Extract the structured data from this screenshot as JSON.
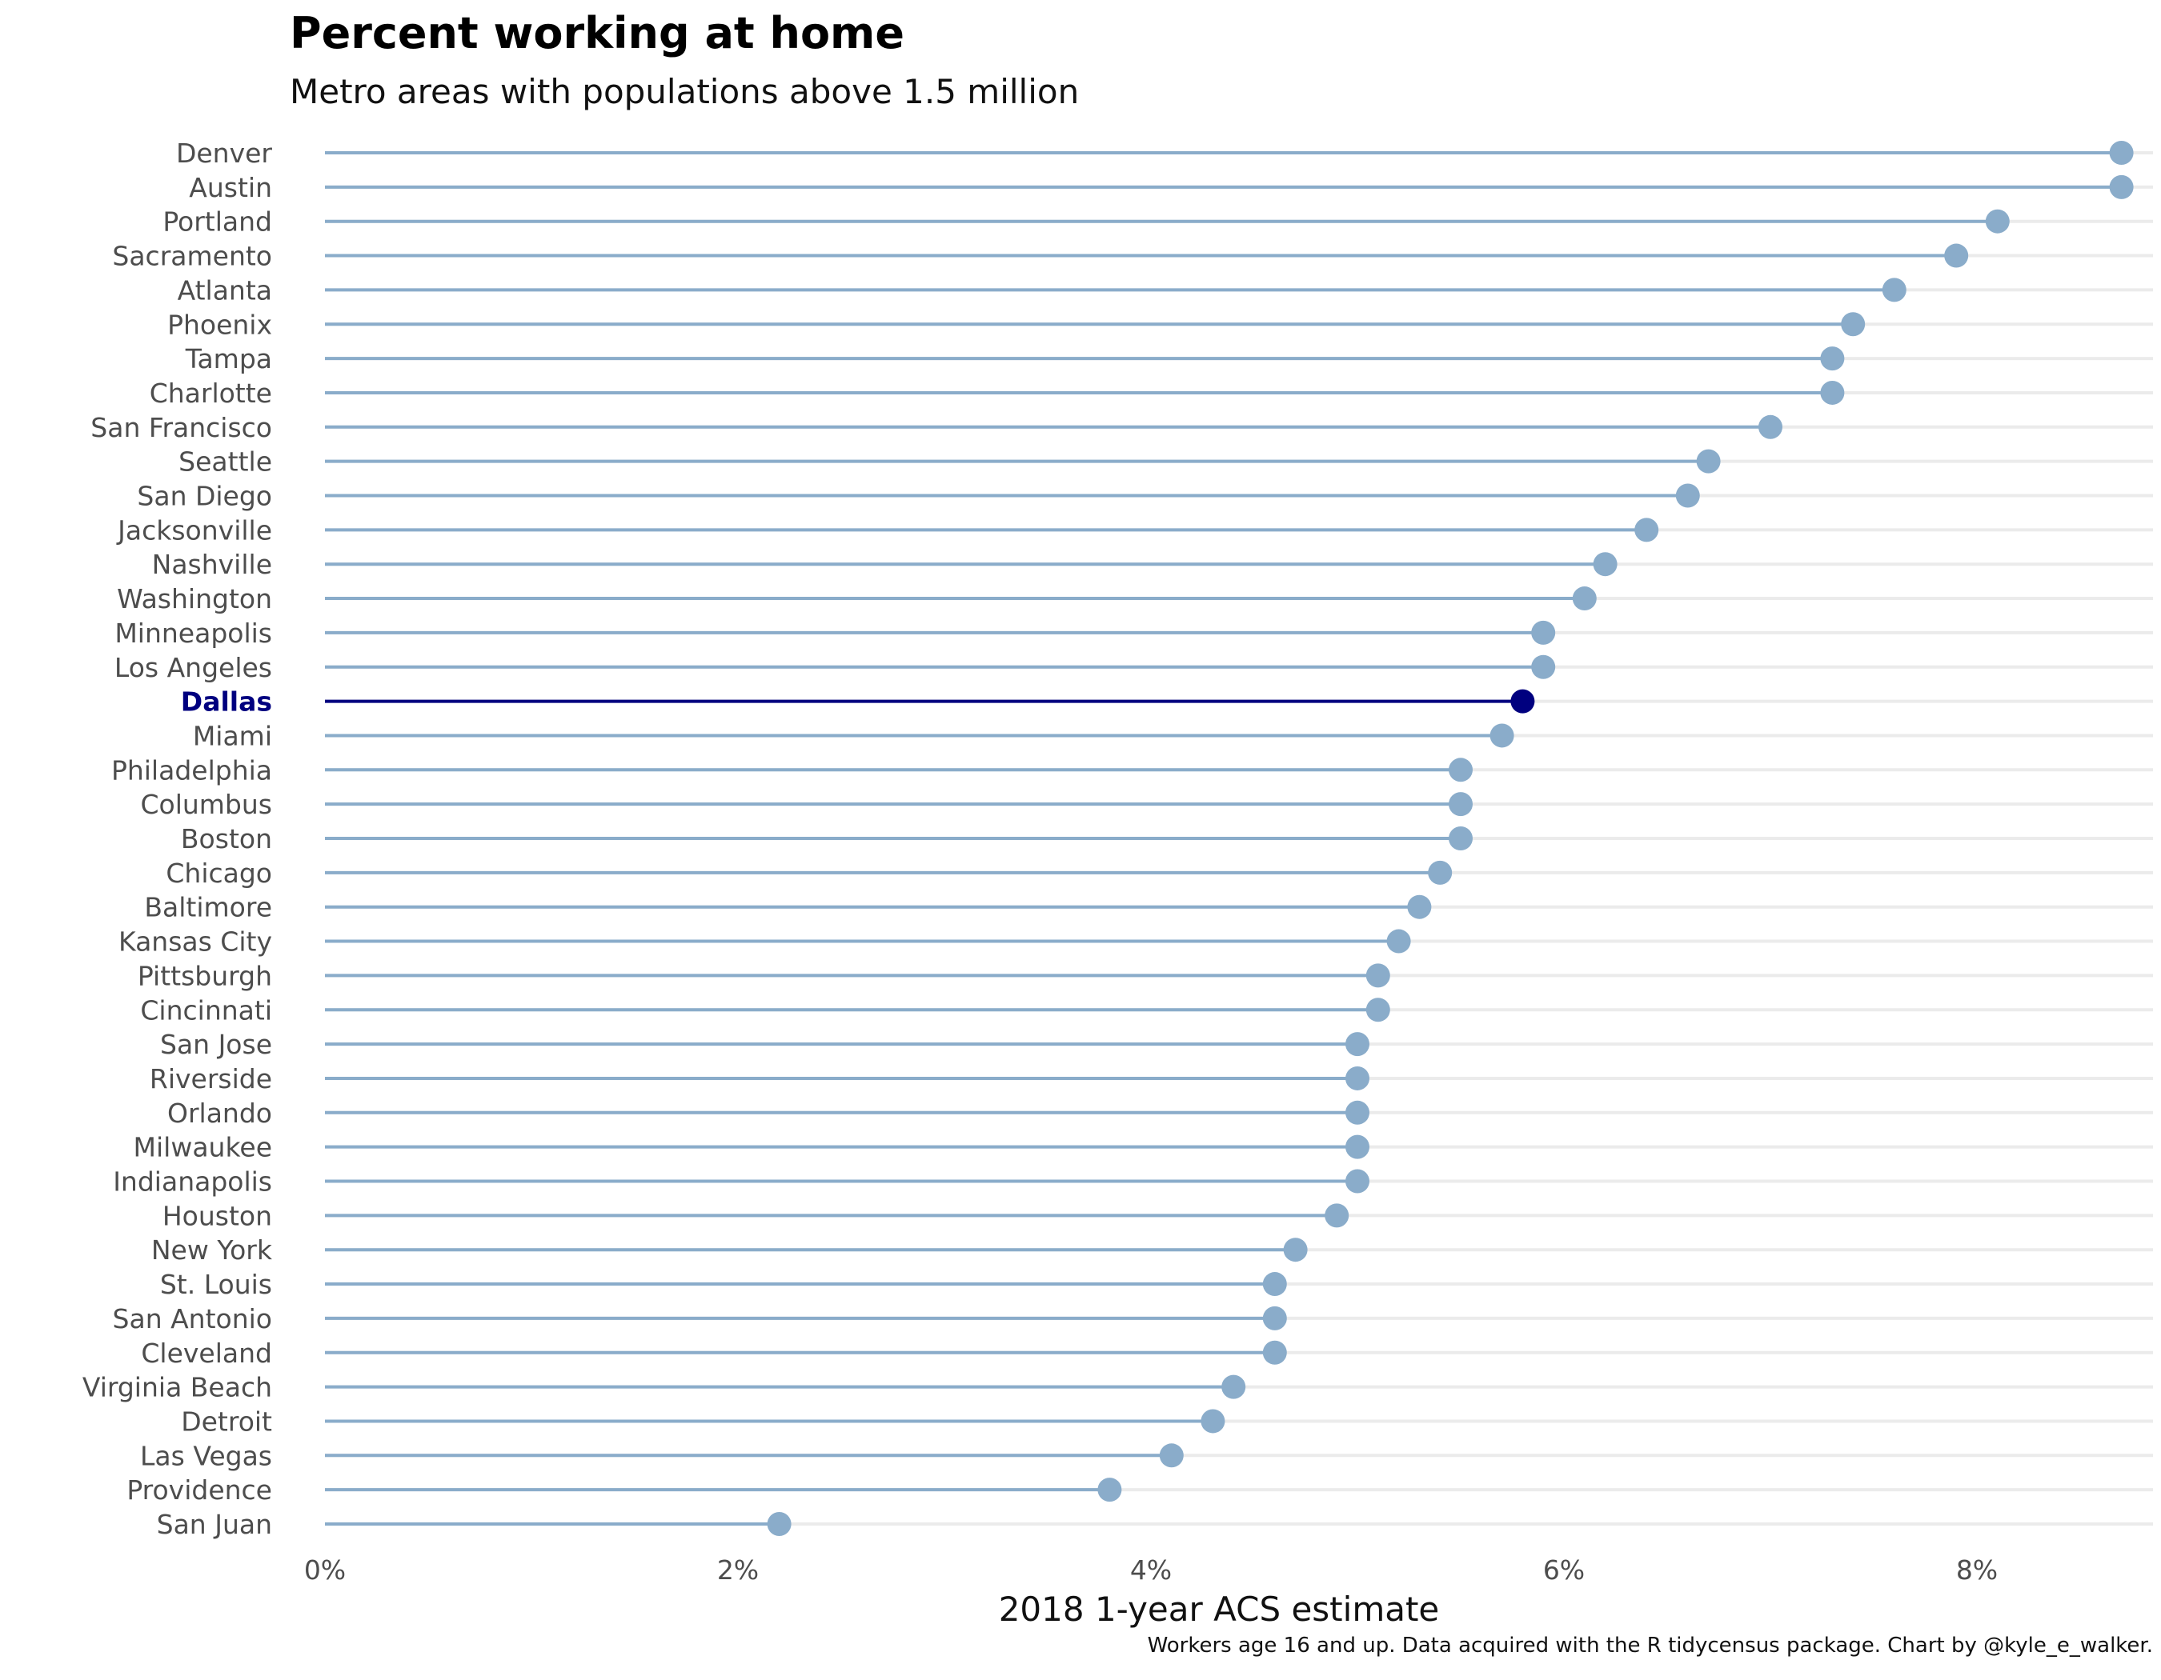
{
  "chart_data": {
    "type": "lollipop",
    "title": "Percent working at home",
    "subtitle": "Metro areas with populations above 1.5 million",
    "xlabel": "2018 1-year ACS estimate",
    "ylabel": "",
    "caption": "Workers age 16 and up. Data acquired with the R tidycensus package. Chart by @kyle_e_walker.",
    "xlim": [
      0,
      8.9
    ],
    "x_ticks": [
      0,
      2,
      4,
      6,
      8
    ],
    "x_tick_labels": [
      "0%",
      "2%",
      "4%",
      "6%",
      "8%"
    ],
    "grid": "horizontal",
    "highlight": "Dallas",
    "colors": {
      "base": "#8aacca",
      "highlight": "#00007f",
      "grid": "#ebebeb",
      "label": "#4d4d4d"
    },
    "points": [
      {
        "metro": "Denver",
        "value": 8.7
      },
      {
        "metro": "Austin",
        "value": 8.7
      },
      {
        "metro": "Portland",
        "value": 8.1
      },
      {
        "metro": "Sacramento",
        "value": 7.9
      },
      {
        "metro": "Atlanta",
        "value": 7.6
      },
      {
        "metro": "Phoenix",
        "value": 7.4
      },
      {
        "metro": "Tampa",
        "value": 7.3
      },
      {
        "metro": "Charlotte",
        "value": 7.3
      },
      {
        "metro": "San Francisco",
        "value": 7.0
      },
      {
        "metro": "Seattle",
        "value": 6.7
      },
      {
        "metro": "San Diego",
        "value": 6.6
      },
      {
        "metro": "Jacksonville",
        "value": 6.4
      },
      {
        "metro": "Nashville",
        "value": 6.2
      },
      {
        "metro": "Washington",
        "value": 6.1
      },
      {
        "metro": "Minneapolis",
        "value": 5.9
      },
      {
        "metro": "Los Angeles",
        "value": 5.9
      },
      {
        "metro": "Dallas",
        "value": 5.8
      },
      {
        "metro": "Miami",
        "value": 5.7
      },
      {
        "metro": "Philadelphia",
        "value": 5.5
      },
      {
        "metro": "Columbus",
        "value": 5.5
      },
      {
        "metro": "Boston",
        "value": 5.5
      },
      {
        "metro": "Chicago",
        "value": 5.4
      },
      {
        "metro": "Baltimore",
        "value": 5.3
      },
      {
        "metro": "Kansas City",
        "value": 5.2
      },
      {
        "metro": "Pittsburgh",
        "value": 5.1
      },
      {
        "metro": "Cincinnati",
        "value": 5.1
      },
      {
        "metro": "San Jose",
        "value": 5.0
      },
      {
        "metro": "Riverside",
        "value": 5.0
      },
      {
        "metro": "Orlando",
        "value": 5.0
      },
      {
        "metro": "Milwaukee",
        "value": 5.0
      },
      {
        "metro": "Indianapolis",
        "value": 5.0
      },
      {
        "metro": "Houston",
        "value": 4.9
      },
      {
        "metro": "New York",
        "value": 4.7
      },
      {
        "metro": "St. Louis",
        "value": 4.6
      },
      {
        "metro": "San Antonio",
        "value": 4.6
      },
      {
        "metro": "Cleveland",
        "value": 4.6
      },
      {
        "metro": "Virginia Beach",
        "value": 4.4
      },
      {
        "metro": "Detroit",
        "value": 4.3
      },
      {
        "metro": "Las Vegas",
        "value": 4.1
      },
      {
        "metro": "Providence",
        "value": 3.8
      },
      {
        "metro": "San Juan",
        "value": 2.2
      }
    ]
  }
}
